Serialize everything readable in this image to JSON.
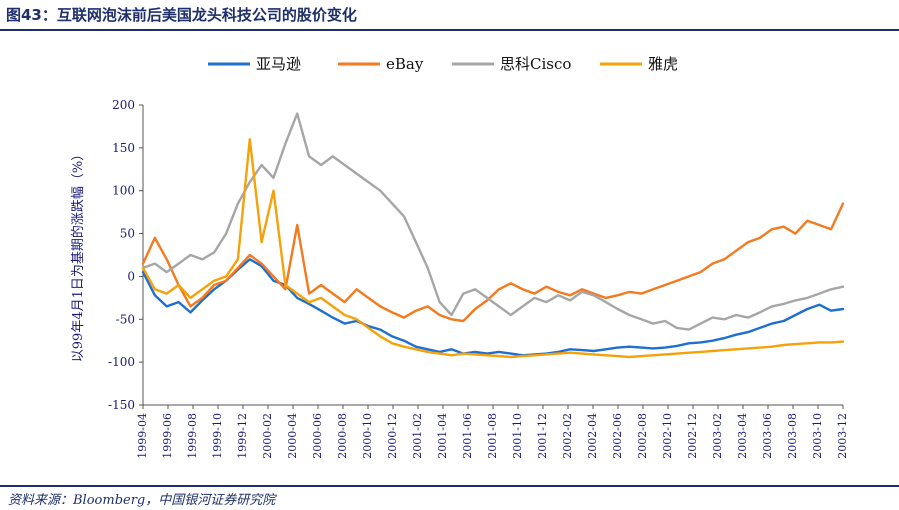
{
  "header": {
    "title": "图43：互联网泡沫前后美国龙头科技公司的股价变化"
  },
  "footer": {
    "source": "资料来源：Bloomberg，中国银河证券研究院"
  },
  "chart_data": {
    "type": "line",
    "title": "图43：互联网泡沫前后美国龙头科技公司的股价变化",
    "xlabel": "",
    "ylabel": "以99年4月1日为基期的涨跌幅（%）",
    "ylim": [
      -150,
      200
    ],
    "yticks": [
      -150,
      -100,
      -50,
      0,
      50,
      100,
      150,
      200
    ],
    "xticks": [
      "1999-04",
      "1999-06",
      "1999-08",
      "1999-10",
      "1999-12",
      "2000-02",
      "2000-04",
      "2000-06",
      "2000-08",
      "2000-10",
      "2000-12",
      "2001-02",
      "2001-04",
      "2001-06",
      "2001-08",
      "2001-10",
      "2001-12",
      "2002-02",
      "2002-04",
      "2002-06",
      "2002-08",
      "2002-10",
      "2002-12",
      "2003-02",
      "2003-04",
      "2003-06",
      "2003-08",
      "2003-10",
      "2003-12"
    ],
    "legend_position": "top",
    "series": [
      {
        "name": "亚马逊",
        "color": "#1f6fd1",
        "points": [
          [
            0,
            5
          ],
          [
            1,
            -22
          ],
          [
            2,
            -35
          ],
          [
            3,
            -30
          ],
          [
            4,
            -42
          ],
          [
            5,
            -28
          ],
          [
            6,
            -15
          ],
          [
            7,
            -5
          ],
          [
            8,
            8
          ],
          [
            9,
            20
          ],
          [
            10,
            12
          ],
          [
            11,
            -5
          ],
          [
            12,
            -10
          ],
          [
            13,
            -25
          ],
          [
            14,
            -32
          ],
          [
            15,
            -40
          ],
          [
            16,
            -48
          ],
          [
            17,
            -55
          ],
          [
            18,
            -52
          ],
          [
            19,
            -58
          ],
          [
            20,
            -62
          ],
          [
            21,
            -70
          ],
          [
            22,
            -75
          ],
          [
            23,
            -82
          ],
          [
            24,
            -85
          ],
          [
            25,
            -88
          ],
          [
            26,
            -85
          ],
          [
            27,
            -90
          ],
          [
            28,
            -88
          ],
          [
            29,
            -90
          ],
          [
            30,
            -88
          ],
          [
            31,
            -90
          ],
          [
            32,
            -92
          ],
          [
            33,
            -91
          ],
          [
            34,
            -90
          ],
          [
            35,
            -88
          ],
          [
            36,
            -85
          ],
          [
            37,
            -86
          ],
          [
            38,
            -87
          ],
          [
            39,
            -85
          ],
          [
            40,
            -83
          ],
          [
            41,
            -82
          ],
          [
            42,
            -83
          ],
          [
            43,
            -84
          ],
          [
            44,
            -83
          ],
          [
            45,
            -81
          ],
          [
            46,
            -78
          ],
          [
            47,
            -77
          ],
          [
            48,
            -75
          ],
          [
            49,
            -72
          ],
          [
            50,
            -68
          ],
          [
            51,
            -65
          ],
          [
            52,
            -60
          ],
          [
            53,
            -55
          ],
          [
            54,
            -52
          ],
          [
            55,
            -45
          ],
          [
            56,
            -38
          ],
          [
            57,
            -33
          ],
          [
            58,
            -40
          ],
          [
            59,
            -38
          ]
        ]
      },
      {
        "name": "eBay",
        "color": "#f47a20",
        "points": [
          [
            0,
            15
          ],
          [
            1,
            45
          ],
          [
            2,
            20
          ],
          [
            3,
            -10
          ],
          [
            4,
            -35
          ],
          [
            5,
            -25
          ],
          [
            6,
            -10
          ],
          [
            7,
            -5
          ],
          [
            8,
            10
          ],
          [
            9,
            25
          ],
          [
            10,
            15
          ],
          [
            11,
            0
          ],
          [
            12,
            -15
          ],
          [
            13,
            60
          ],
          [
            14,
            -20
          ],
          [
            15,
            -10
          ],
          [
            16,
            -20
          ],
          [
            17,
            -30
          ],
          [
            18,
            -15
          ],
          [
            19,
            -25
          ],
          [
            20,
            -35
          ],
          [
            21,
            -42
          ],
          [
            22,
            -48
          ],
          [
            23,
            -40
          ],
          [
            24,
            -35
          ],
          [
            25,
            -45
          ],
          [
            26,
            -50
          ],
          [
            27,
            -52
          ],
          [
            28,
            -38
          ],
          [
            29,
            -28
          ],
          [
            30,
            -15
          ],
          [
            31,
            -8
          ],
          [
            32,
            -15
          ],
          [
            33,
            -20
          ],
          [
            34,
            -12
          ],
          [
            35,
            -18
          ],
          [
            36,
            -22
          ],
          [
            37,
            -15
          ],
          [
            38,
            -20
          ],
          [
            39,
            -25
          ],
          [
            40,
            -22
          ],
          [
            41,
            -18
          ],
          [
            42,
            -20
          ],
          [
            43,
            -15
          ],
          [
            44,
            -10
          ],
          [
            45,
            -5
          ],
          [
            46,
            0
          ],
          [
            47,
            5
          ],
          [
            48,
            15
          ],
          [
            49,
            20
          ],
          [
            50,
            30
          ],
          [
            51,
            40
          ],
          [
            52,
            45
          ],
          [
            53,
            55
          ],
          [
            54,
            58
          ],
          [
            55,
            50
          ],
          [
            56,
            65
          ],
          [
            57,
            60
          ],
          [
            58,
            55
          ],
          [
            59,
            85
          ]
        ]
      },
      {
        "name": "思科Cisco",
        "color": "#a6a6a6",
        "points": [
          [
            0,
            10
          ],
          [
            1,
            15
          ],
          [
            2,
            5
          ],
          [
            3,
            15
          ],
          [
            4,
            25
          ],
          [
            5,
            20
          ],
          [
            6,
            28
          ],
          [
            7,
            50
          ],
          [
            8,
            85
          ],
          [
            9,
            110
          ],
          [
            10,
            130
          ],
          [
            11,
            115
          ],
          [
            12,
            155
          ],
          [
            13,
            190
          ],
          [
            14,
            140
          ],
          [
            15,
            130
          ],
          [
            16,
            140
          ],
          [
            17,
            130
          ],
          [
            18,
            120
          ],
          [
            19,
            110
          ],
          [
            20,
            100
          ],
          [
            21,
            85
          ],
          [
            22,
            70
          ],
          [
            23,
            40
          ],
          [
            24,
            10
          ],
          [
            25,
            -30
          ],
          [
            26,
            -45
          ],
          [
            27,
            -20
          ],
          [
            28,
            -15
          ],
          [
            29,
            -25
          ],
          [
            30,
            -35
          ],
          [
            31,
            -45
          ],
          [
            32,
            -35
          ],
          [
            33,
            -25
          ],
          [
            34,
            -30
          ],
          [
            35,
            -22
          ],
          [
            36,
            -28
          ],
          [
            37,
            -18
          ],
          [
            38,
            -22
          ],
          [
            39,
            -30
          ],
          [
            40,
            -38
          ],
          [
            41,
            -45
          ],
          [
            42,
            -50
          ],
          [
            43,
            -55
          ],
          [
            44,
            -52
          ],
          [
            45,
            -60
          ],
          [
            46,
            -62
          ],
          [
            47,
            -55
          ],
          [
            48,
            -48
          ],
          [
            49,
            -50
          ],
          [
            50,
            -45
          ],
          [
            51,
            -48
          ],
          [
            52,
            -42
          ],
          [
            53,
            -35
          ],
          [
            54,
            -32
          ],
          [
            55,
            -28
          ],
          [
            56,
            -25
          ],
          [
            57,
            -20
          ],
          [
            58,
            -15
          ],
          [
            59,
            -12
          ]
        ]
      },
      {
        "name": "雅虎",
        "color": "#f5a20a",
        "points": [
          [
            0,
            10
          ],
          [
            1,
            -15
          ],
          [
            2,
            -20
          ],
          [
            3,
            -10
          ],
          [
            4,
            -25
          ],
          [
            5,
            -15
          ],
          [
            6,
            -5
          ],
          [
            7,
            0
          ],
          [
            8,
            20
          ],
          [
            9,
            160
          ],
          [
            10,
            40
          ],
          [
            11,
            100
          ],
          [
            12,
            -10
          ],
          [
            13,
            -20
          ],
          [
            14,
            -30
          ],
          [
            15,
            -25
          ],
          [
            16,
            -35
          ],
          [
            17,
            -45
          ],
          [
            18,
            -50
          ],
          [
            19,
            -60
          ],
          [
            20,
            -70
          ],
          [
            21,
            -78
          ],
          [
            22,
            -82
          ],
          [
            23,
            -85
          ],
          [
            24,
            -88
          ],
          [
            25,
            -90
          ],
          [
            26,
            -92
          ],
          [
            27,
            -90
          ],
          [
            28,
            -91
          ],
          [
            29,
            -92
          ],
          [
            30,
            -93
          ],
          [
            31,
            -94
          ],
          [
            32,
            -93
          ],
          [
            33,
            -92
          ],
          [
            34,
            -91
          ],
          [
            35,
            -90
          ],
          [
            36,
            -89
          ],
          [
            37,
            -90
          ],
          [
            38,
            -91
          ],
          [
            39,
            -92
          ],
          [
            40,
            -93
          ],
          [
            41,
            -94
          ],
          [
            42,
            -93
          ],
          [
            43,
            -92
          ],
          [
            44,
            -91
          ],
          [
            45,
            -90
          ],
          [
            46,
            -89
          ],
          [
            47,
            -88
          ],
          [
            48,
            -87
          ],
          [
            49,
            -86
          ],
          [
            50,
            -85
          ],
          [
            51,
            -84
          ],
          [
            52,
            -83
          ],
          [
            53,
            -82
          ],
          [
            54,
            -80
          ],
          [
            55,
            -79
          ],
          [
            56,
            -78
          ],
          [
            57,
            -77
          ],
          [
            58,
            -77
          ],
          [
            59,
            -76
          ]
        ]
      }
    ]
  }
}
